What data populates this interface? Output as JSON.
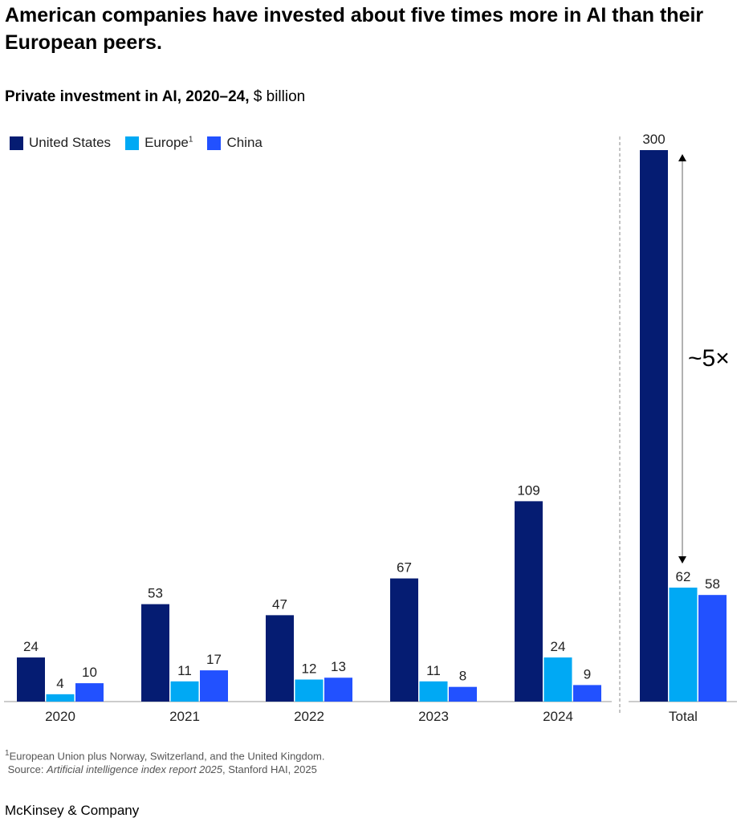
{
  "title": "American companies have invested about five times more in AI than their European peers.",
  "subtitle_bold": "Private investment in AI, 2020–24,",
  "subtitle_unit": " $ billion",
  "chart_data": {
    "type": "bar",
    "categories": [
      "2020",
      "2021",
      "2022",
      "2023",
      "2024",
      "Total"
    ],
    "series": [
      {
        "name": "United States",
        "color": "#051c72",
        "values": [
          24,
          53,
          47,
          67,
          109,
          300
        ]
      },
      {
        "name": "Europe",
        "footnote_mark": "1",
        "color": "#00a9f4",
        "values": [
          4,
          11,
          12,
          11,
          24,
          62
        ]
      },
      {
        "name": "China",
        "color": "#2251ff",
        "values": [
          10,
          17,
          13,
          8,
          9,
          58
        ]
      }
    ],
    "annotation": "~5×",
    "ylim": [
      0,
      300
    ],
    "grid": false,
    "legend": "top-left"
  },
  "footnote": "European Union plus Norway, Switzerland, and the United Kingdom.",
  "footnote_mark": "1",
  "source_prefix": "Source: ",
  "source_title": "Artificial intelligence index report 2025",
  "source_suffix": ", Stanford HAI, 2025",
  "brand": "McKinsey & Company"
}
